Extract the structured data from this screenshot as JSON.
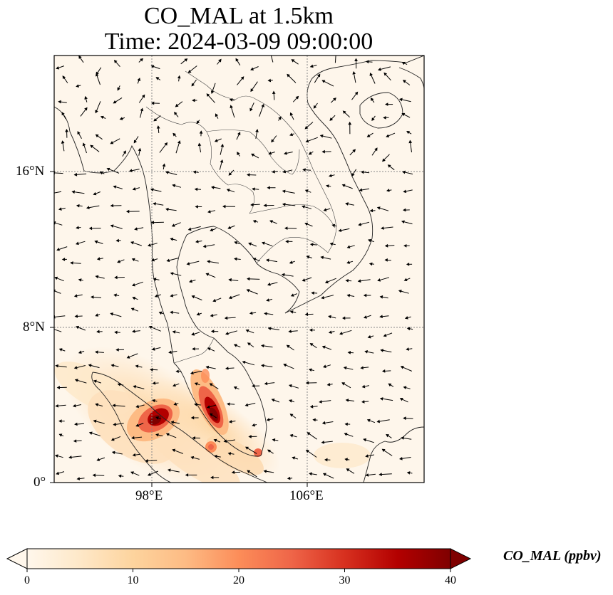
{
  "title": {
    "line1": "CO_MAL at 1.5km",
    "line2": "Time: 2024-03-09 09:00:00"
  },
  "map": {
    "lon_ticks": [
      "98°E",
      "106°E"
    ],
    "lat_ticks": [
      "16°N",
      "8°N",
      "0°"
    ],
    "gridlines": "dotted",
    "overlay": "wind vectors"
  },
  "colorbar": {
    "label": "CO_MAL (ppbv)",
    "ticks": [
      "0",
      "10",
      "20",
      "30",
      "40"
    ],
    "colormap": "OrRd",
    "colors": [
      "#fff7ec",
      "#fee8c8",
      "#fdd49e",
      "#fdbb84",
      "#fc8d59",
      "#ef6548",
      "#d7301f",
      "#b30000",
      "#7f0000"
    ]
  },
  "chart_data": {
    "type": "heatmap",
    "title": "CO_MAL at 1.5km",
    "subtitle": "Time: 2024-03-09 09:00:00",
    "xlabel": "",
    "ylabel": "",
    "xlim": [
      93,
      112
    ],
    "ylim": [
      0,
      22
    ],
    "x_ticks": [
      "98°E",
      "106°E"
    ],
    "y_ticks": [
      "16°N",
      "8°N",
      "0°"
    ],
    "value_range": [
      0,
      40
    ],
    "units": "ppbv",
    "hotspots": [
      {
        "lon": 98.3,
        "lat": 3.2,
        "value": 40
      },
      {
        "lon": 101.3,
        "lat": 3.7,
        "value": 40
      },
      {
        "lon": 101.0,
        "lat": 5.4,
        "value": 18
      },
      {
        "lon": 103.6,
        "lat": 1.5,
        "value": 22
      },
      {
        "lon": 103.0,
        "lat": 1.9,
        "value": 18
      }
    ]
  }
}
